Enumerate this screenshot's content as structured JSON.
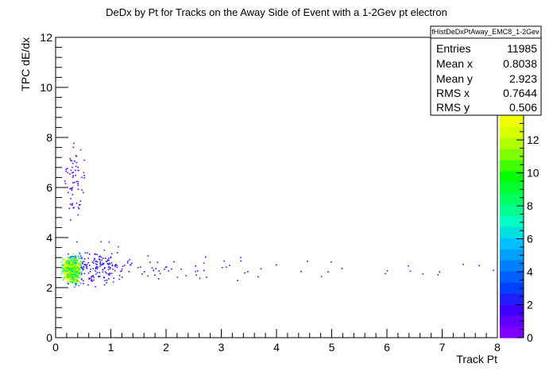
{
  "chart_data": {
    "type": "heatmap",
    "title": "DeDx by Pt for Tracks on the Away Side of Event with a 1-2Gev pt electron",
    "xlabel": "Track Pt",
    "ylabel": "TPC dE/dx",
    "xlim": [
      0,
      8
    ],
    "ylim": [
      0,
      12
    ],
    "x_ticks": [
      "0",
      "1",
      "2",
      "3",
      "4",
      "5",
      "6",
      "7",
      "8"
    ],
    "y_ticks": [
      "0",
      "2",
      "4",
      "6",
      "8",
      "10",
      "12"
    ],
    "grid": false,
    "colorbar": {
      "range": [
        0,
        13.5
      ],
      "ticks": [
        "0",
        "2",
        "4",
        "6",
        "8",
        "10",
        "12"
      ],
      "colors": [
        "#7f00ff",
        "#5f00ff",
        "#4000ff",
        "#2020ff",
        "#0040ff",
        "#0060ff",
        "#0080ff",
        "#00a0ff",
        "#00c0ff",
        "#00e0e0",
        "#00ffc0",
        "#00ff90",
        "#00ff60",
        "#00ff30",
        "#00ff00",
        "#40ff00",
        "#80ff00",
        "#b0ff00",
        "#d8ff00",
        "#f0ff00"
      ]
    },
    "stats": {
      "name": "fHistDeDxPtAway_EMC8_1-2Gev",
      "rows": [
        {
          "label": "Entries",
          "value": "11985"
        },
        {
          "label": "Mean x",
          "value": "0.8038"
        },
        {
          "label": "Mean y",
          "value": "2.923"
        },
        {
          "label": "RMS x",
          "value": "0.7644"
        },
        {
          "label": "RMS y",
          "value": "0.506"
        }
      ]
    },
    "density_bands": [
      {
        "x": [
          0.1,
          0.4
        ],
        "y": [
          2.2,
          3.3
        ],
        "level": 8
      },
      {
        "x": [
          0.15,
          0.5
        ],
        "y": [
          2.0,
          3.5
        ],
        "level": 4
      },
      {
        "x": [
          0.1,
          1.5
        ],
        "y": [
          1.8,
          4.0
        ],
        "level": 1
      },
      {
        "x": [
          0.1,
          3.5
        ],
        "y": [
          1.5,
          4.5
        ],
        "level": 0.5
      },
      {
        "x": [
          0.1,
          8.0
        ],
        "y": [
          1.5,
          4.0
        ],
        "level": 0.2
      },
      {
        "x": [
          0.1,
          0.6
        ],
        "y": [
          4.0,
          8.4
        ],
        "level": 0.3
      }
    ]
  }
}
